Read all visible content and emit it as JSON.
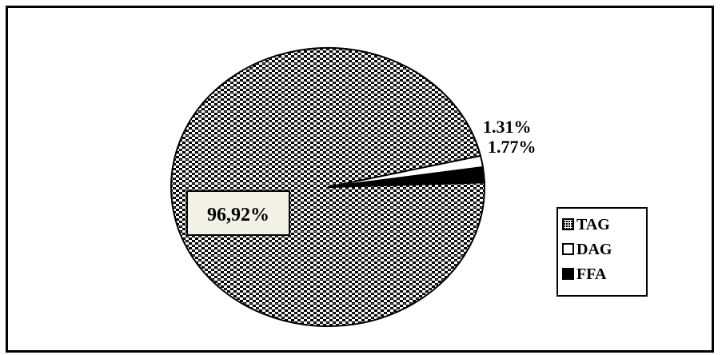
{
  "chart_data": {
    "type": "pie",
    "slices": [
      {
        "name": "TAG",
        "value": 96.92,
        "label": "96,92%",
        "fill": "pattern"
      },
      {
        "name": "DAG",
        "value": 1.31,
        "label": "1.31%",
        "fill": "#ffffff"
      },
      {
        "name": "FFA",
        "value": 1.77,
        "label": "1.77%",
        "fill": "#000000"
      }
    ],
    "legend": {
      "position": "right",
      "items": [
        "TAG",
        "DAG",
        "FFA"
      ]
    },
    "colors": {
      "outline": "#000000",
      "pattern_fg": "#000000",
      "pattern_bg": "#ffffff",
      "label_box": "#f3f1e6"
    }
  }
}
